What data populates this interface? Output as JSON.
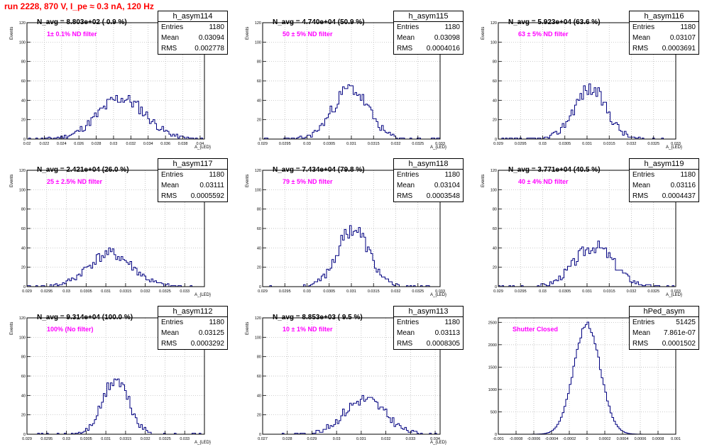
{
  "run_title": "run 2228,   870 V, I_pe ≈ 0.3 nA, 120 Hz",
  "colors": {
    "title": "#ff0000",
    "annotation": "#ff00ff",
    "histogram": "#000080",
    "grid": "#b0b0b0"
  },
  "stat_keys": {
    "entries": "Entries",
    "mean": "Mean",
    "rms": "RMS"
  },
  "chart_data": [
    {
      "type": "histogram",
      "name": "h_asym114",
      "navg": "N_avg = 8.803e+02 ( 0.9 %)",
      "filter": "1± 0.1% ND filter",
      "entries": "1180",
      "mean": "0.03094",
      "rms": "0.002778",
      "xlabel": "A_{LED}",
      "ylabel": "Events",
      "xlim": [
        0.02,
        0.0405
      ],
      "ylim": [
        0,
        120
      ],
      "mean_val": 0.03094,
      "rms_val": 0.002778,
      "xticks": [
        0.02,
        0.022,
        0.024,
        0.026,
        0.028,
        0.03,
        0.032,
        0.034,
        0.036,
        0.038,
        0.04
      ],
      "xtick_labels": [
        "0.02",
        "0.022",
        "0.024",
        "0.026",
        "0.028",
        "0.03",
        "0.032",
        "0.034",
        "0.036",
        "0.038",
        "0.04"
      ],
      "yticks": [
        0,
        20,
        40,
        60,
        80,
        100,
        120
      ],
      "ytick_labels": [
        "0",
        "20",
        "40",
        "60",
        "80",
        "100",
        "120"
      ],
      "seed": 11
    },
    {
      "type": "histogram",
      "name": "h_asym115",
      "navg": "N_avg = 4.740e+04 (50.9 %)",
      "filter": "50 ± 5% ND filter",
      "entries": "1180",
      "mean": "0.03098",
      "rms": "0.0004016",
      "xlabel": "A_{LED}",
      "ylabel": "Events",
      "xlim": [
        0.029,
        0.033
      ],
      "ylim": [
        0,
        120
      ],
      "mean_val": 0.03098,
      "rms_val": 0.0004016,
      "xticks": [
        0.029,
        0.0295,
        0.03,
        0.0305,
        0.031,
        0.0315,
        0.032,
        0.0325,
        0.033
      ],
      "xtick_labels": [
        "0.029",
        "0.0295",
        "0.03",
        "0.0305",
        "0.031",
        "0.0315",
        "0.032",
        "0.0325",
        "0.033"
      ],
      "yticks": [
        0,
        20,
        40,
        60,
        80,
        100,
        120
      ],
      "ytick_labels": [
        "0",
        "20",
        "40",
        "60",
        "80",
        "100",
        "120"
      ],
      "seed": 23
    },
    {
      "type": "histogram",
      "name": "h_asym116",
      "navg": "N_avg = 5.923e+04 (63.6 %)",
      "filter": "63 ± 5% ND filter",
      "entries": "1180",
      "mean": "0.03107",
      "rms": "0.0003691",
      "xlabel": "A_{LED}",
      "ylabel": "Events",
      "xlim": [
        0.029,
        0.033
      ],
      "ylim": [
        0,
        120
      ],
      "mean_val": 0.03107,
      "rms_val": 0.0003691,
      "xticks": [
        0.029,
        0.0295,
        0.03,
        0.0305,
        0.031,
        0.0315,
        0.032,
        0.0325,
        0.033
      ],
      "xtick_labels": [
        "0.029",
        "0.0295",
        "0.03",
        "0.0305",
        "0.031",
        "0.0315",
        "0.032",
        "0.0325",
        "0.033"
      ],
      "yticks": [
        0,
        20,
        40,
        60,
        80,
        100,
        120
      ],
      "ytick_labels": [
        "0",
        "20",
        "40",
        "60",
        "80",
        "100",
        "120"
      ],
      "seed": 37
    },
    {
      "type": "histogram",
      "name": "h_asym117",
      "navg": "N_avg = 2.421e+04 (26.0 %)",
      "filter": "25 ± 2.5% ND filter",
      "entries": "1180",
      "mean": "0.03111",
      "rms": "0.0005592",
      "xlabel": "A_{LED}",
      "ylabel": "Events",
      "xlim": [
        0.029,
        0.0335
      ],
      "ylim": [
        0,
        120
      ],
      "mean_val": 0.03111,
      "rms_val": 0.0005592,
      "xticks": [
        0.029,
        0.0295,
        0.03,
        0.0305,
        0.031,
        0.0315,
        0.032,
        0.0325,
        0.033
      ],
      "xtick_labels": [
        "0.029",
        "0.0295",
        "0.03",
        "0.0305",
        "0.031",
        "0.0315",
        "0.032",
        "0.0325",
        "0.033"
      ],
      "yticks": [
        0,
        20,
        40,
        60,
        80,
        100,
        120
      ],
      "ytick_labels": [
        "0",
        "20",
        "40",
        "60",
        "80",
        "100",
        "120"
      ],
      "seed": 41
    },
    {
      "type": "histogram",
      "name": "h_asym118",
      "navg": "N_avg = 7.434e+04 (79.8 %)",
      "filter": "79 ± 5% ND filter",
      "entries": "1180",
      "mean": "0.03104",
      "rms": "0.0003548",
      "xlabel": "A_{LED}",
      "ylabel": "Events",
      "xlim": [
        0.029,
        0.033
      ],
      "ylim": [
        0,
        120
      ],
      "mean_val": 0.03104,
      "rms_val": 0.0003548,
      "xticks": [
        0.029,
        0.0295,
        0.03,
        0.0305,
        0.031,
        0.0315,
        0.032,
        0.0325,
        0.033
      ],
      "xtick_labels": [
        "0.029",
        "0.0295",
        "0.03",
        "0.0305",
        "0.031",
        "0.0315",
        "0.032",
        "0.0325",
        "0.033"
      ],
      "yticks": [
        0,
        20,
        40,
        60,
        80,
        100,
        120
      ],
      "ytick_labels": [
        "0",
        "20",
        "40",
        "60",
        "80",
        "100",
        "120"
      ],
      "seed": 53
    },
    {
      "type": "histogram",
      "name": "h_asym119",
      "navg": "N_avg = 3.771e+04 (40.5 %)",
      "filter": "40 ± 4% ND filter",
      "entries": "1180",
      "mean": "0.03116",
      "rms": "0.0004437",
      "xlabel": "A_{LED}",
      "ylabel": "Events",
      "xlim": [
        0.029,
        0.033
      ],
      "ylim": [
        0,
        120
      ],
      "mean_val": 0.03116,
      "rms_val": 0.0004437,
      "xticks": [
        0.029,
        0.0295,
        0.03,
        0.0305,
        0.031,
        0.0315,
        0.032,
        0.0325,
        0.033
      ],
      "xtick_labels": [
        "0.029",
        "0.0295",
        "0.03",
        "0.0305",
        "0.031",
        "0.0315",
        "0.032",
        "0.0325",
        "0.033"
      ],
      "yticks": [
        0,
        20,
        40,
        60,
        80,
        100,
        120
      ],
      "ytick_labels": [
        "0",
        "20",
        "40",
        "60",
        "80",
        "100",
        "120"
      ],
      "seed": 67
    },
    {
      "type": "histogram",
      "name": "h_asym112",
      "navg": "N_avg = 9.314e+04 (100.0 %)",
      "filter": "100% (No filter)",
      "entries": "1180",
      "mean": "0.03125",
      "rms": "0.0003292",
      "xlabel": "A_{LED}",
      "ylabel": "Events",
      "xlim": [
        0.029,
        0.0335
      ],
      "ylim": [
        0,
        120
      ],
      "mean_val": 0.03125,
      "rms_val": 0.0003292,
      "xticks": [
        0.029,
        0.0295,
        0.03,
        0.0305,
        0.031,
        0.0315,
        0.032,
        0.0325,
        0.033
      ],
      "xtick_labels": [
        "0.029",
        "0.0295",
        "0.03",
        "0.0305",
        "0.031",
        "0.0315",
        "0.032",
        "0.0325",
        "0.033"
      ],
      "yticks": [
        0,
        20,
        40,
        60,
        80,
        100,
        120
      ],
      "ytick_labels": [
        "0",
        "20",
        "40",
        "60",
        "80",
        "100",
        "120"
      ],
      "seed": 71
    },
    {
      "type": "histogram",
      "name": "h_asym113",
      "navg": "N_avg = 8.853e+03 ( 9.5 %)",
      "filter": "10 ± 1% ND filter",
      "entries": "1180",
      "mean": "0.03113",
      "rms": "0.0008305",
      "xlabel": "A_{LED}",
      "ylabel": "Events",
      "xlim": [
        0.027,
        0.0342
      ],
      "ylim": [
        0,
        120
      ],
      "mean_val": 0.03113,
      "rms_val": 0.0008305,
      "xticks": [
        0.027,
        0.028,
        0.029,
        0.03,
        0.031,
        0.032,
        0.033,
        0.034
      ],
      "xtick_labels": [
        "0.027",
        "0.028",
        "0.029",
        "0.03",
        "0.031",
        "0.032",
        "0.033",
        "0.034"
      ],
      "yticks": [
        0,
        20,
        40,
        60,
        80,
        100,
        120
      ],
      "ytick_labels": [
        "0",
        "20",
        "40",
        "60",
        "80",
        "100",
        "120"
      ],
      "seed": 83
    },
    {
      "type": "histogram",
      "name": "hPed_asym",
      "navg": "",
      "filter": "Shutter Closed",
      "entries": "51425",
      "mean": "7.861e-07",
      "rms": "0.0001502",
      "xlabel": "",
      "ylabel": "",
      "xlim": [
        -0.001,
        0.001
      ],
      "ylim": [
        0,
        2600
      ],
      "mean_val": 0.0,
      "rms_val": 0.0001502,
      "xticks": [
        -0.001,
        -0.0008,
        -0.0006,
        -0.0004,
        -0.0002,
        0,
        0.0002,
        0.0004,
        0.0006,
        0.0008,
        0.001
      ],
      "xtick_labels": [
        "-0.001",
        "-0.0008",
        "-0.0006",
        "-0.0004",
        "-0.0002",
        "0",
        "0.0002",
        "0.0004",
        "0.0006",
        "0.0008",
        "0.001"
      ],
      "yticks": [
        0,
        500,
        1000,
        1500,
        2000,
        2500
      ],
      "ytick_labels": [
        "0",
        "500",
        "1000",
        "1500",
        "2000",
        "2500"
      ],
      "seed": 97
    }
  ]
}
